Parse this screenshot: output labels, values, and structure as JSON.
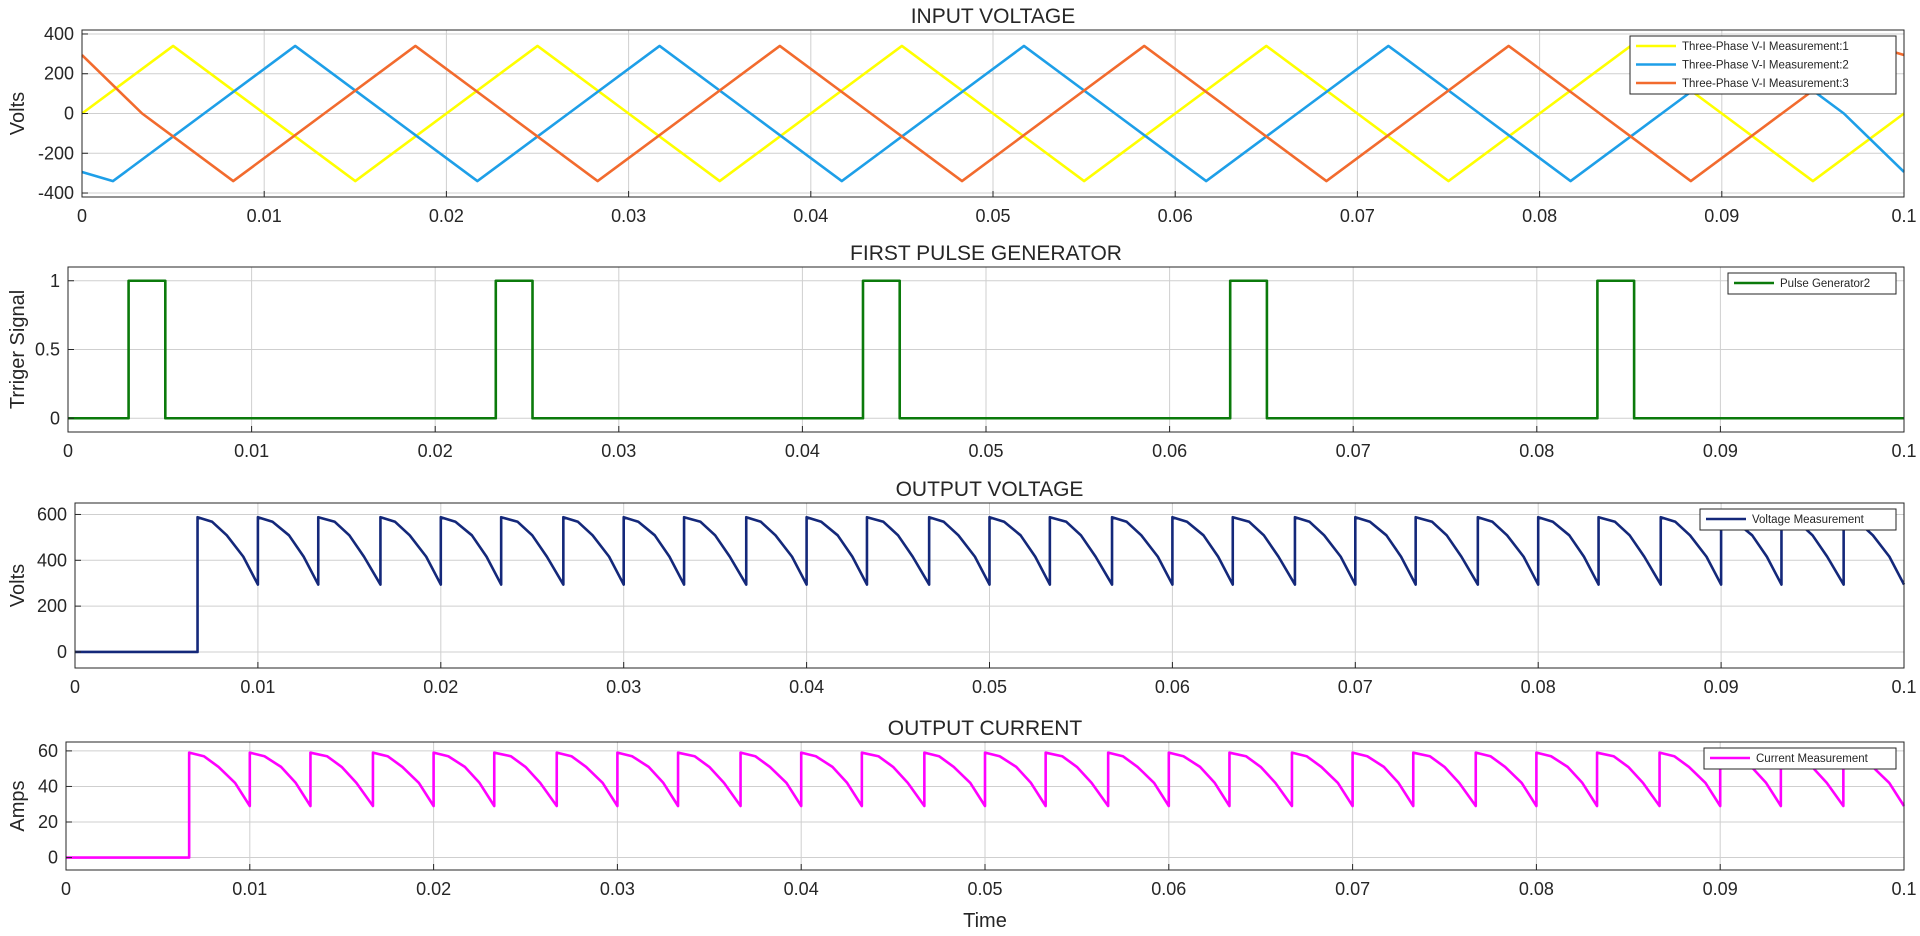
{
  "figure": {
    "xlabel": "Time"
  },
  "chart_data": [
    {
      "type": "line",
      "title": "INPUT VOLTAGE",
      "xlabel": "",
      "ylabel": "Volts",
      "xlim": [
        0,
        0.1
      ],
      "ylim": [
        -420,
        420
      ],
      "xticks": [
        0,
        0.01,
        0.02,
        0.03,
        0.04,
        0.05,
        0.06,
        0.07,
        0.08,
        0.09,
        0.1
      ],
      "xtick_labels": [
        "0",
        "0.01",
        "0.02",
        "0.03",
        "0.04",
        "0.05",
        "0.06",
        "0.07",
        "0.08",
        "0.09",
        "0.1"
      ],
      "yticks": [
        -400,
        -200,
        0,
        200,
        400
      ],
      "ytick_labels": [
        "-400",
        "-200",
        "0",
        "200",
        "400"
      ],
      "grid": true,
      "legend": "top-right",
      "series": [
        {
          "name": "Three-Phase V-I Measurement:1",
          "color": "#ffff00",
          "x": [
            0,
            0.005,
            0.01,
            0.015,
            0.02,
            0.025,
            0.03,
            0.035,
            0.04,
            0.045,
            0.05,
            0.055,
            0.06,
            0.065,
            0.07,
            0.075,
            0.08,
            0.085,
            0.09,
            0.095,
            0.1
          ],
          "y": [
            0,
            340,
            0,
            -340,
            0,
            340,
            0,
            -340,
            0,
            340,
            0,
            -340,
            0,
            340,
            0,
            -340,
            0,
            340,
            0,
            -340,
            0
          ]
        },
        {
          "name": "Three-Phase V-I Measurement:2",
          "color": "#1e9fe8",
          "x": [
            0,
            0.0017,
            0.0067,
            0.0117,
            0.0167,
            0.0217,
            0.0267,
            0.0317,
            0.0367,
            0.0417,
            0.0467,
            0.0517,
            0.0567,
            0.0617,
            0.0667,
            0.0717,
            0.0767,
            0.0817,
            0.0867,
            0.0917,
            0.0967,
            0.1
          ],
          "y": [
            -294,
            -340,
            0,
            340,
            0,
            -340,
            0,
            340,
            0,
            -340,
            0,
            340,
            0,
            -340,
            0,
            340,
            0,
            -340,
            0,
            340,
            0,
            -294
          ]
        },
        {
          "name": "Three-Phase V-I Measurement:3",
          "color": "#f26b2e",
          "x": [
            0,
            0.0033,
            0.0083,
            0.0133,
            0.0183,
            0.0233,
            0.0283,
            0.0333,
            0.0383,
            0.0433,
            0.0483,
            0.0533,
            0.0583,
            0.0633,
            0.0683,
            0.0733,
            0.0783,
            0.0833,
            0.0883,
            0.0933,
            0.0983,
            0.1
          ],
          "y": [
            294,
            0,
            -340,
            0,
            340,
            0,
            -340,
            0,
            340,
            0,
            -340,
            0,
            340,
            0,
            -340,
            0,
            340,
            0,
            -340,
            0,
            340,
            294
          ]
        }
      ]
    },
    {
      "type": "line",
      "title": "FIRST PULSE GENERATOR",
      "xlabel": "",
      "ylabel": "Trriger Signal",
      "xlim": [
        0,
        0.1
      ],
      "ylim": [
        -0.1,
        1.1
      ],
      "xticks": [
        0,
        0.01,
        0.02,
        0.03,
        0.04,
        0.05,
        0.06,
        0.07,
        0.08,
        0.09,
        0.1
      ],
      "xtick_labels": [
        "0",
        "0.01",
        "0.02",
        "0.03",
        "0.04",
        "0.05",
        "0.06",
        "0.07",
        "0.08",
        "0.09",
        "0.1"
      ],
      "yticks": [
        0,
        0.5,
        1
      ],
      "ytick_labels": [
        "0",
        "0.5",
        "1"
      ],
      "grid": true,
      "legend": "top-right",
      "series": [
        {
          "name": "Pulse Generator2",
          "color": "#0b7a0b",
          "x": [
            0,
            0.0033,
            0.0033,
            0.0053,
            0.0053,
            0.0233,
            0.0233,
            0.0253,
            0.0253,
            0.0433,
            0.0433,
            0.0453,
            0.0453,
            0.0633,
            0.0633,
            0.0653,
            0.0653,
            0.0833,
            0.0833,
            0.0853,
            0.0853,
            0.1
          ],
          "y": [
            0,
            0,
            1,
            1,
            0,
            0,
            1,
            1,
            0,
            0,
            1,
            1,
            0,
            0,
            1,
            1,
            0,
            0,
            1,
            1,
            0,
            0
          ]
        }
      ]
    },
    {
      "type": "line",
      "title": "OUTPUT VOLTAGE",
      "xlabel": "",
      "ylabel": "Volts",
      "xlim": [
        0,
        0.1
      ],
      "ylim": [
        -70,
        650
      ],
      "xticks": [
        0,
        0.01,
        0.02,
        0.03,
        0.04,
        0.05,
        0.06,
        0.07,
        0.08,
        0.09,
        0.1
      ],
      "xtick_labels": [
        "0",
        "0.01",
        "0.02",
        "0.03",
        "0.04",
        "0.05",
        "0.06",
        "0.07",
        "0.08",
        "0.09",
        "0.1"
      ],
      "yticks": [
        0,
        200,
        400,
        600
      ],
      "ytick_labels": [
        "0",
        "200",
        "400",
        "600"
      ],
      "grid": true,
      "legend": "top-right",
      "series": [
        {
          "name": "Voltage Measurement",
          "color": "#14287a",
          "x": [
            0,
            0.0067,
            0.0067,
            0.0075,
            0.0083,
            0.0092,
            0.01,
            0.01,
            0.0108,
            0.0117,
            0.0125,
            0.0133,
            0.0133,
            0.0142,
            0.015,
            0.0158,
            0.0167,
            0.0167,
            0.0175,
            0.0183,
            0.0192,
            0.02,
            0.02,
            0.0208,
            0.0217,
            0.0225,
            0.0233,
            0.0233,
            0.0242,
            0.025,
            0.0258,
            0.0267,
            0.0267,
            0.0275,
            0.0283,
            0.0292,
            0.03,
            0.03,
            0.0308,
            0.0317,
            0.0325,
            0.0333,
            0.0333,
            0.0342,
            0.035,
            0.0358,
            0.0367,
            0.0367,
            0.0375,
            0.0383,
            0.0392,
            0.04,
            0.04,
            0.0408,
            0.0417,
            0.0425,
            0.0433,
            0.0433,
            0.0442,
            0.045,
            0.0458,
            0.0467,
            0.0467,
            0.0475,
            0.0483,
            0.0492,
            0.05,
            0.05,
            0.0508,
            0.0517,
            0.0525,
            0.0533,
            0.0533,
            0.0542,
            0.055,
            0.0558,
            0.0567,
            0.0567,
            0.0575,
            0.0583,
            0.0592,
            0.06,
            0.06,
            0.0608,
            0.0617,
            0.0625,
            0.0633,
            0.0633,
            0.0642,
            0.065,
            0.0658,
            0.0667,
            0.0667,
            0.0675,
            0.0683,
            0.0692,
            0.07,
            0.07,
            0.0708,
            0.0717,
            0.0725,
            0.0733,
            0.0733,
            0.0742,
            0.075,
            0.0758,
            0.0767,
            0.0767,
            0.0775,
            0.0783,
            0.0792,
            0.08,
            0.08,
            0.0808,
            0.0817,
            0.0825,
            0.0833,
            0.0833,
            0.0842,
            0.085,
            0.0858,
            0.0867,
            0.0867,
            0.0875,
            0.0883,
            0.0892,
            0.09,
            0.09,
            0.0908,
            0.0917,
            0.0925,
            0.0933,
            0.0933,
            0.0942,
            0.095,
            0.0958,
            0.0967,
            0.0967,
            0.0975,
            0.0983,
            0.0992,
            0.1
          ],
          "y": [
            0,
            0,
            588,
            568,
            509,
            416,
            294,
            588,
            568,
            509,
            416,
            294,
            588,
            568,
            509,
            416,
            294,
            588,
            568,
            509,
            416,
            294,
            588,
            568,
            509,
            416,
            294,
            588,
            568,
            509,
            416,
            294,
            588,
            568,
            509,
            416,
            294,
            588,
            568,
            509,
            416,
            294,
            588,
            568,
            509,
            416,
            294,
            588,
            568,
            509,
            416,
            294,
            588,
            568,
            509,
            416,
            294,
            588,
            568,
            509,
            416,
            294,
            588,
            568,
            509,
            416,
            294,
            588,
            568,
            509,
            416,
            294,
            588,
            568,
            509,
            416,
            294,
            588,
            568,
            509,
            416,
            294,
            588,
            568,
            509,
            416,
            294,
            588,
            568,
            509,
            416,
            294,
            588,
            568,
            509,
            416,
            294,
            588,
            568,
            509,
            416,
            294,
            588,
            568,
            509,
            416,
            294,
            588,
            568,
            509,
            416,
            294,
            588,
            568,
            509,
            416,
            294,
            588,
            568,
            509,
            416,
            294,
            588,
            568,
            509,
            416,
            294,
            588,
            568,
            509,
            416,
            294,
            588,
            568,
            509,
            416,
            294,
            588,
            568,
            509,
            416,
            294
          ]
        }
      ]
    },
    {
      "type": "line",
      "title": "OUTPUT CURRENT",
      "xlabel": "Time",
      "ylabel": "Amps",
      "xlim": [
        0,
        0.1
      ],
      "ylim": [
        -7,
        65
      ],
      "xticks": [
        0,
        0.01,
        0.02,
        0.03,
        0.04,
        0.05,
        0.06,
        0.07,
        0.08,
        0.09,
        0.1
      ],
      "xtick_labels": [
        "0",
        "0.01",
        "0.02",
        "0.03",
        "0.04",
        "0.05",
        "0.06",
        "0.07",
        "0.08",
        "0.09",
        "0.1"
      ],
      "yticks": [
        0,
        20,
        40,
        60
      ],
      "ytick_labels": [
        "0",
        "20",
        "40",
        "60"
      ],
      "grid": true,
      "legend": "top-right",
      "series": [
        {
          "name": "Current Measurement",
          "color": "#ff00ff",
          "x": [
            0,
            0.0067,
            0.0067,
            0.0075,
            0.0083,
            0.0092,
            0.01,
            0.01,
            0.0108,
            0.0117,
            0.0125,
            0.0133,
            0.0133,
            0.0142,
            0.015,
            0.0158,
            0.0167,
            0.0167,
            0.0175,
            0.0183,
            0.0192,
            0.02,
            0.02,
            0.0208,
            0.0217,
            0.0225,
            0.0233,
            0.0233,
            0.0242,
            0.025,
            0.0258,
            0.0267,
            0.0267,
            0.0275,
            0.0283,
            0.0292,
            0.03,
            0.03,
            0.0308,
            0.0317,
            0.0325,
            0.0333,
            0.0333,
            0.0342,
            0.035,
            0.0358,
            0.0367,
            0.0367,
            0.0375,
            0.0383,
            0.0392,
            0.04,
            0.04,
            0.0408,
            0.0417,
            0.0425,
            0.0433,
            0.0433,
            0.0442,
            0.045,
            0.0458,
            0.0467,
            0.0467,
            0.0475,
            0.0483,
            0.0492,
            0.05,
            0.05,
            0.0508,
            0.0517,
            0.0525,
            0.0533,
            0.0533,
            0.0542,
            0.055,
            0.0558,
            0.0567,
            0.0567,
            0.0575,
            0.0583,
            0.0592,
            0.06,
            0.06,
            0.0608,
            0.0617,
            0.0625,
            0.0633,
            0.0633,
            0.0642,
            0.065,
            0.0658,
            0.0667,
            0.0667,
            0.0675,
            0.0683,
            0.0692,
            0.07,
            0.07,
            0.0708,
            0.0717,
            0.0725,
            0.0733,
            0.0733,
            0.0742,
            0.075,
            0.0758,
            0.0767,
            0.0767,
            0.0775,
            0.0783,
            0.0792,
            0.08,
            0.08,
            0.0808,
            0.0817,
            0.0825,
            0.0833,
            0.0833,
            0.0842,
            0.085,
            0.0858,
            0.0867,
            0.0867,
            0.0875,
            0.0883,
            0.0892,
            0.09,
            0.09,
            0.0908,
            0.0917,
            0.0925,
            0.0933,
            0.0933,
            0.0942,
            0.095,
            0.0958,
            0.0967,
            0.0967,
            0.0975,
            0.0983,
            0.0992,
            0.1
          ],
          "y": [
            0,
            0,
            59,
            57,
            51,
            42,
            29,
            59,
            57,
            51,
            42,
            29,
            59,
            57,
            51,
            42,
            29,
            59,
            57,
            51,
            42,
            29,
            59,
            57,
            51,
            42,
            29,
            59,
            57,
            51,
            42,
            29,
            59,
            57,
            51,
            42,
            29,
            59,
            57,
            51,
            42,
            29,
            59,
            57,
            51,
            42,
            29,
            59,
            57,
            51,
            42,
            29,
            59,
            57,
            51,
            42,
            29,
            59,
            57,
            51,
            42,
            29,
            59,
            57,
            51,
            42,
            29,
            59,
            57,
            51,
            42,
            29,
            59,
            57,
            51,
            42,
            29,
            59,
            57,
            51,
            42,
            29,
            59,
            57,
            51,
            42,
            29,
            59,
            57,
            51,
            42,
            29,
            59,
            57,
            51,
            42,
            29,
            59,
            57,
            51,
            42,
            29,
            59,
            57,
            51,
            42,
            29,
            59,
            57,
            51,
            42,
            29,
            59,
            57,
            51,
            42,
            29,
            59,
            57,
            51,
            42,
            29,
            59,
            57,
            51,
            42,
            29,
            59,
            57,
            51,
            42,
            29,
            59,
            57,
            51,
            42,
            29,
            59,
            57,
            51,
            42,
            29
          ]
        }
      ]
    }
  ]
}
